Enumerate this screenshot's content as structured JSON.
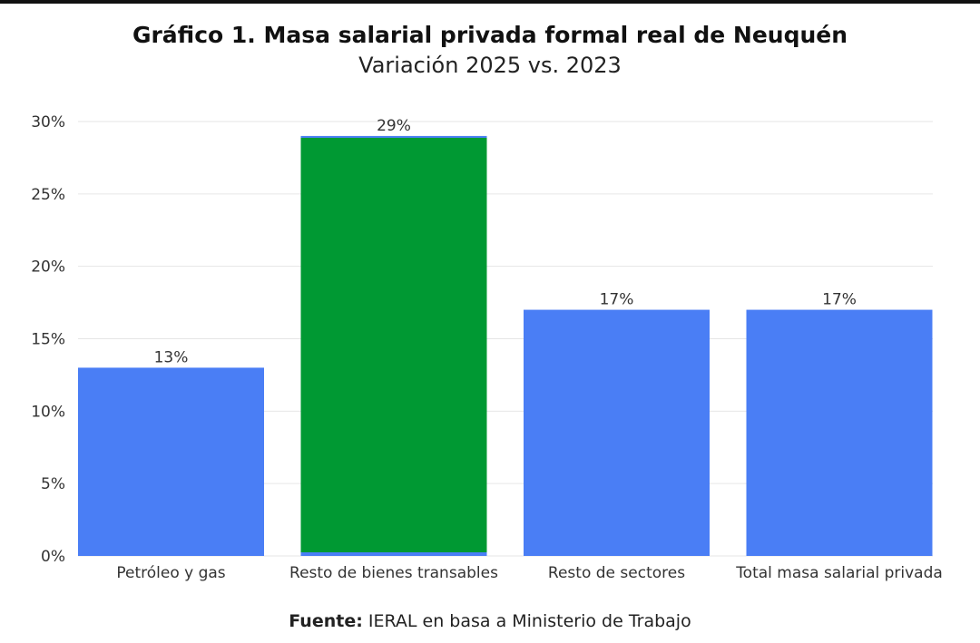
{
  "header": {
    "title": "Gráfico 1. Masa salarial privada formal real de Neuquén",
    "subtitle": "Variación 2025 vs. 2023"
  },
  "source": {
    "label": "Fuente:",
    "text": "IERAL en basa a Ministerio de Trabajo"
  },
  "colors": {
    "bar_default": "#4a7ef5",
    "bar_highlight": "#009933",
    "grid": "#e6e6e6"
  },
  "chart_data": {
    "type": "bar",
    "title": "Gráfico 1. Masa salarial privada formal real de Neuquén",
    "subtitle": "Variación 2025 vs. 2023",
    "categories": [
      "Petróleo y gas",
      "Resto de bienes transables",
      "Resto de sectores",
      "Total masa salarial privada"
    ],
    "values": [
      13,
      29,
      17,
      17
    ],
    "data_labels": [
      "13%",
      "29%",
      "17%",
      "17%"
    ],
    "highlight_index": 1,
    "ylim": [
      0,
      30
    ],
    "yticks": [
      0,
      5,
      10,
      15,
      20,
      25,
      30
    ],
    "ytick_labels": [
      "0%",
      "5%",
      "10%",
      "15%",
      "20%",
      "25%",
      "30%"
    ],
    "xlabel": "",
    "ylabel": "",
    "grid": true,
    "legend": "none"
  }
}
